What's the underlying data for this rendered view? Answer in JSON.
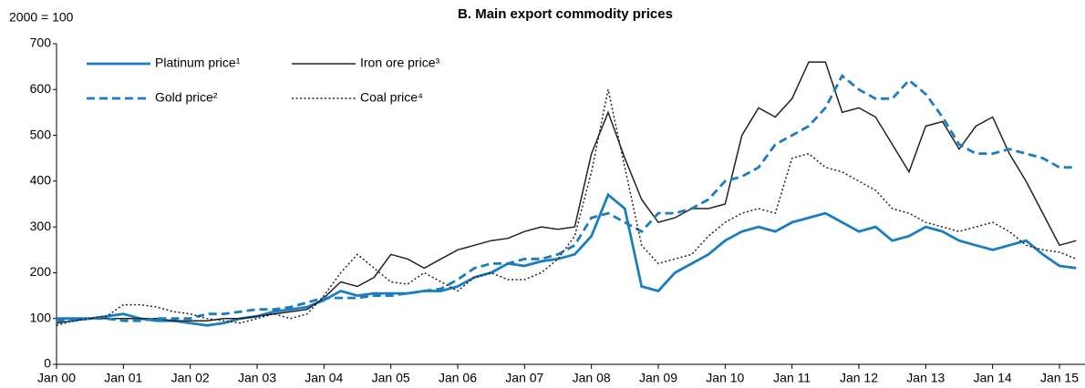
{
  "chart_data": {
    "type": "line",
    "title": "B. Main export commodity prices",
    "y_label": "2000 = 100",
    "categories": [
      "Jan 00",
      null,
      null,
      null,
      "Jan 01",
      null,
      null,
      null,
      "Jan 02",
      null,
      null,
      null,
      "Jan 03",
      null,
      null,
      null,
      "Jan 04",
      null,
      null,
      null,
      "Jan 05",
      null,
      null,
      null,
      "Jan 06",
      null,
      null,
      null,
      "Jan 07",
      null,
      null,
      null,
      "Jan 08",
      null,
      null,
      null,
      "Jan 09",
      null,
      null,
      null,
      "Jan 10",
      null,
      null,
      null,
      "Jan 11",
      null,
      null,
      null,
      "Jan 12",
      null,
      null,
      null,
      "Jan 13",
      null,
      null,
      null,
      "Jan 14",
      null,
      null,
      null,
      "Jan 15",
      null
    ],
    "series": [
      {
        "name": "Platinum price¹",
        "color": "#1a7dc0",
        "style": "solid",
        "values": [
          100,
          100,
          100,
          105,
          110,
          100,
          95,
          95,
          90,
          85,
          90,
          100,
          105,
          115,
          120,
          125,
          140,
          160,
          150,
          155,
          155,
          155,
          160,
          160,
          170,
          190,
          200,
          220,
          215,
          225,
          230,
          240,
          280,
          370,
          340,
          170,
          160,
          200,
          220,
          240,
          270,
          290,
          300,
          290,
          310,
          320,
          330,
          310,
          290,
          300,
          270,
          280,
          300,
          290,
          270,
          260,
          250,
          260,
          270,
          240,
          215,
          210
        ]
      },
      {
        "name": "Iron ore price³",
        "color": "#222222",
        "style": "solid",
        "values": [
          90,
          95,
          100,
          100,
          100,
          100,
          100,
          95,
          95,
          95,
          100,
          100,
          105,
          110,
          115,
          120,
          145,
          180,
          170,
          190,
          240,
          230,
          210,
          230,
          250,
          260,
          270,
          275,
          290,
          300,
          295,
          300,
          460,
          550,
          450,
          360,
          310,
          320,
          340,
          340,
          350,
          500,
          560,
          540,
          580,
          660,
          660,
          550,
          560,
          540,
          480,
          420,
          520,
          530,
          470,
          520,
          540,
          460,
          400,
          330,
          260,
          270
        ]
      },
      {
        "name": "Gold price²",
        "color": "#1a7dc0",
        "style": "dashed",
        "values": [
          95,
          95,
          100,
          100,
          95,
          95,
          100,
          100,
          100,
          110,
          110,
          115,
          120,
          120,
          125,
          135,
          145,
          145,
          145,
          150,
          150,
          155,
          160,
          165,
          185,
          210,
          220,
          220,
          230,
          230,
          240,
          260,
          320,
          330,
          310,
          290,
          330,
          330,
          340,
          360,
          400,
          410,
          430,
          480,
          500,
          520,
          560,
          630,
          600,
          580,
          580,
          620,
          590,
          540,
          480,
          460,
          460,
          470,
          460,
          450,
          430,
          430
        ]
      },
      {
        "name": "Coal price⁴",
        "color": "#222222",
        "style": "dotted",
        "values": [
          85,
          95,
          100,
          105,
          130,
          130,
          125,
          115,
          110,
          100,
          95,
          90,
          100,
          110,
          100,
          110,
          150,
          200,
          240,
          210,
          180,
          175,
          200,
          180,
          160,
          190,
          200,
          185,
          185,
          200,
          230,
          280,
          420,
          600,
          430,
          260,
          220,
          230,
          240,
          280,
          310,
          330,
          340,
          330,
          450,
          460,
          430,
          420,
          400,
          380,
          340,
          330,
          310,
          300,
          290,
          300,
          310,
          290,
          260,
          250,
          245,
          230
        ]
      }
    ],
    "ylim": [
      0,
      700
    ],
    "yticks": [
      0,
      100,
      200,
      300,
      400,
      500,
      600,
      700
    ]
  }
}
